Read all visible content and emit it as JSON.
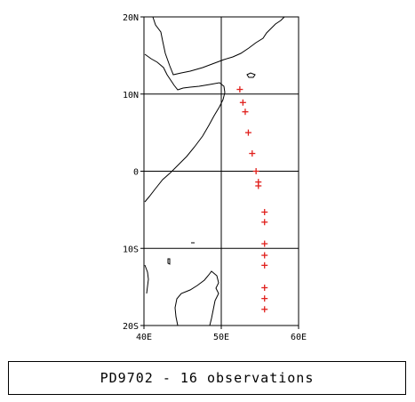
{
  "map": {
    "lon_range": [
      40,
      60
    ],
    "lat_range": [
      -20,
      20
    ],
    "grid_lons": [
      50
    ],
    "grid_lats": [
      -10,
      0,
      10
    ],
    "x_ticks": [
      {
        "value": 40,
        "label": "40E"
      },
      {
        "value": 50,
        "label": "50E"
      },
      {
        "value": 60,
        "label": "60E"
      }
    ],
    "y_ticks": [
      {
        "value": 20,
        "label": "20N"
      },
      {
        "value": 10,
        "label": "10N"
      },
      {
        "value": 0,
        "label": "0"
      },
      {
        "value": -10,
        "label": "10S"
      },
      {
        "value": -20,
        "label": "20S"
      }
    ],
    "marker_symbol": "+",
    "marker_color": "#e0201c",
    "observations": [
      {
        "lon": 52.4,
        "lat": 10.6
      },
      {
        "lon": 52.8,
        "lat": 8.9
      },
      {
        "lon": 53.1,
        "lat": 7.7
      },
      {
        "lon": 53.5,
        "lat": 5.0
      },
      {
        "lon": 54.0,
        "lat": 2.3
      },
      {
        "lon": 54.5,
        "lat": 0.0
      },
      {
        "lon": 54.8,
        "lat": -1.4
      },
      {
        "lon": 54.8,
        "lat": -1.9
      },
      {
        "lon": 55.6,
        "lat": -5.3
      },
      {
        "lon": 55.6,
        "lat": -6.6
      },
      {
        "lon": 55.6,
        "lat": -9.4
      },
      {
        "lon": 55.6,
        "lat": -10.9
      },
      {
        "lon": 55.6,
        "lat": -12.2
      },
      {
        "lon": 55.6,
        "lat": -15.1
      },
      {
        "lon": 55.6,
        "lat": -16.5
      },
      {
        "lon": 55.6,
        "lat": -17.9
      }
    ]
  },
  "caption": {
    "text": "PD9702 - 16 observations"
  }
}
